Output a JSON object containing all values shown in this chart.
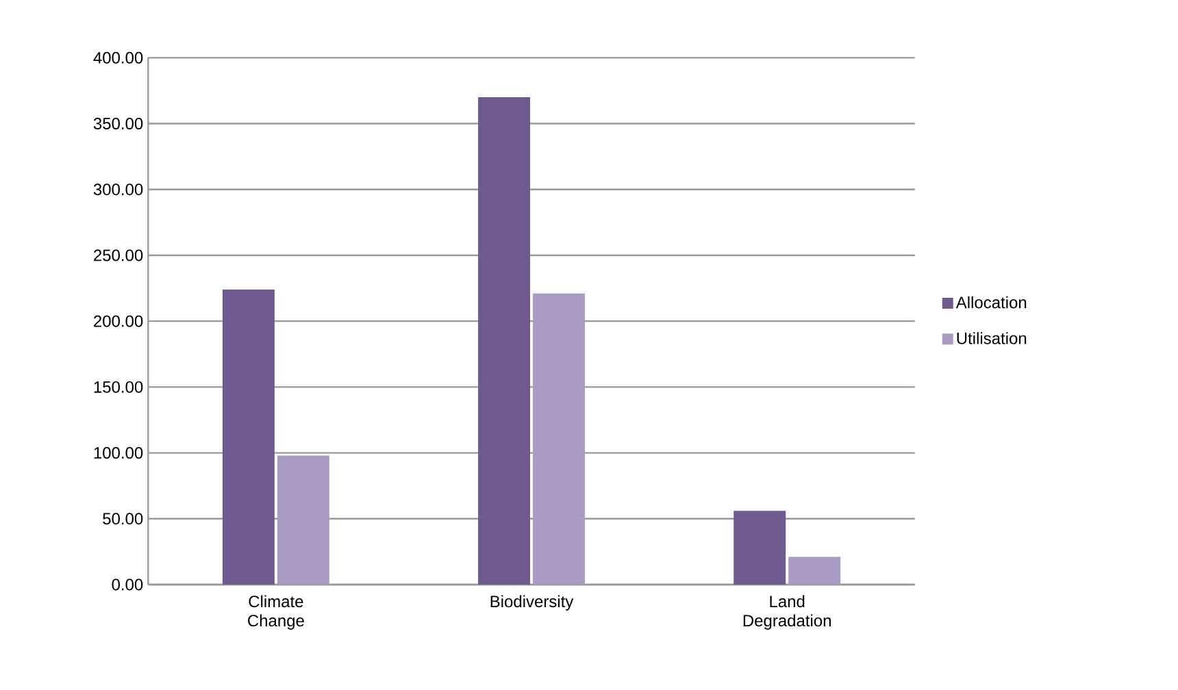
{
  "chart_data": {
    "type": "bar",
    "categories": [
      "Climate Change",
      "Biodiversity",
      "Land Degradation"
    ],
    "series": [
      {
        "name": "Allocation",
        "color": "#70598f",
        "values": [
          224,
          370,
          56
        ]
      },
      {
        "name": "Utilisation",
        "color": "#a99bc4",
        "values": [
          98,
          221,
          21
        ]
      }
    ],
    "ylim": [
      0,
      400
    ],
    "yticks": [
      {
        "value": 0,
        "label": "0.00"
      },
      {
        "value": 50,
        "label": "50.00"
      },
      {
        "value": 100,
        "label": "100.00"
      },
      {
        "value": 150,
        "label": "150.00"
      },
      {
        "value": 200,
        "label": "200.00"
      },
      {
        "value": 250,
        "label": "250.00"
      },
      {
        "value": 300,
        "label": "300.00"
      },
      {
        "value": 350,
        "label": "350.00"
      },
      {
        "value": 400,
        "label": "400.00"
      }
    ],
    "grid": "y",
    "legend": "right"
  }
}
